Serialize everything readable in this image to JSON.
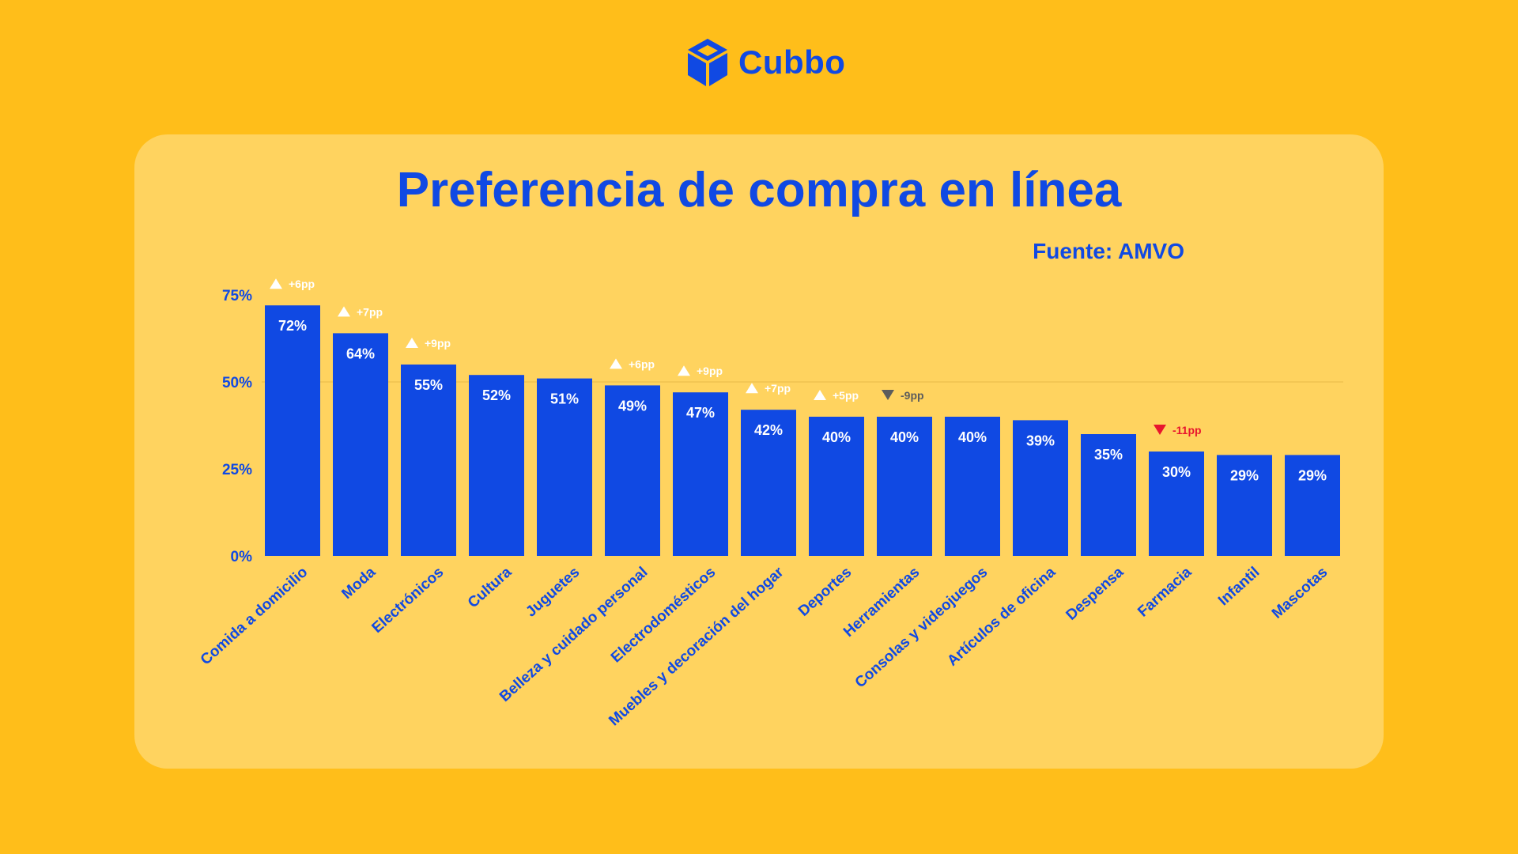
{
  "brand": {
    "name": "Cubbo",
    "color": "#1049E3",
    "icon": "cube-logo-icon"
  },
  "header": {
    "title": "Preferencia de compra en línea",
    "source": "Fuente: AMVO"
  },
  "colors": {
    "background": "#FFBE1A",
    "panel": "#FFD35F",
    "bar": "#1049E3",
    "up": "#FFFFFF",
    "down_neutral": "#5C5C5C",
    "down_alert": "#E8152E"
  },
  "chart_data": {
    "type": "bar",
    "title": "Preferencia de compra en línea",
    "xlabel": "",
    "ylabel": "",
    "ylim": [
      0,
      75
    ],
    "yticks": [
      0,
      25,
      50,
      75
    ],
    "ytick_labels": [
      "0%",
      "25%",
      "50%",
      "75%"
    ],
    "grid": "horizontal at 50%",
    "categories": [
      "Comida a domicilio",
      "Moda",
      "Electrónicos",
      "Cultura",
      "Juguetes",
      "Belleza y cuidado personal",
      "Electrodomésticos",
      "Muebles y decoración del hogar",
      "Deportes",
      "Herramientas",
      "Consolas y videojuegos",
      "Artículos de oficina",
      "Despensa",
      "Farmacia",
      "Infantil",
      "Mascotas"
    ],
    "values": [
      72,
      64,
      55,
      52,
      51,
      49,
      47,
      42,
      40,
      40,
      40,
      39,
      35,
      30,
      29,
      29
    ],
    "value_labels": [
      "72%",
      "64%",
      "55%",
      "52%",
      "51%",
      "49%",
      "47%",
      "42%",
      "40%",
      "40%",
      "40%",
      "39%",
      "35%",
      "30%",
      "29%",
      "29%"
    ],
    "changes": [
      {
        "label": "+6pp",
        "direction": "up",
        "color": "#FFFFFF"
      },
      {
        "label": "+7pp",
        "direction": "up",
        "color": "#FFFFFF"
      },
      {
        "label": "+9pp",
        "direction": "up",
        "color": "#FFFFFF"
      },
      null,
      null,
      {
        "label": "+6pp",
        "direction": "up",
        "color": "#FFFFFF"
      },
      {
        "label": "+9pp",
        "direction": "up",
        "color": "#FFFFFF"
      },
      {
        "label": "+7pp",
        "direction": "up",
        "color": "#FFFFFF"
      },
      {
        "label": "+5pp",
        "direction": "up",
        "color": "#FFFFFF"
      },
      {
        "label": "-9pp",
        "direction": "down",
        "color": "#5C5C5C"
      },
      null,
      null,
      null,
      {
        "label": "-11pp",
        "direction": "down",
        "color": "#E8152E"
      },
      null,
      null
    ]
  }
}
